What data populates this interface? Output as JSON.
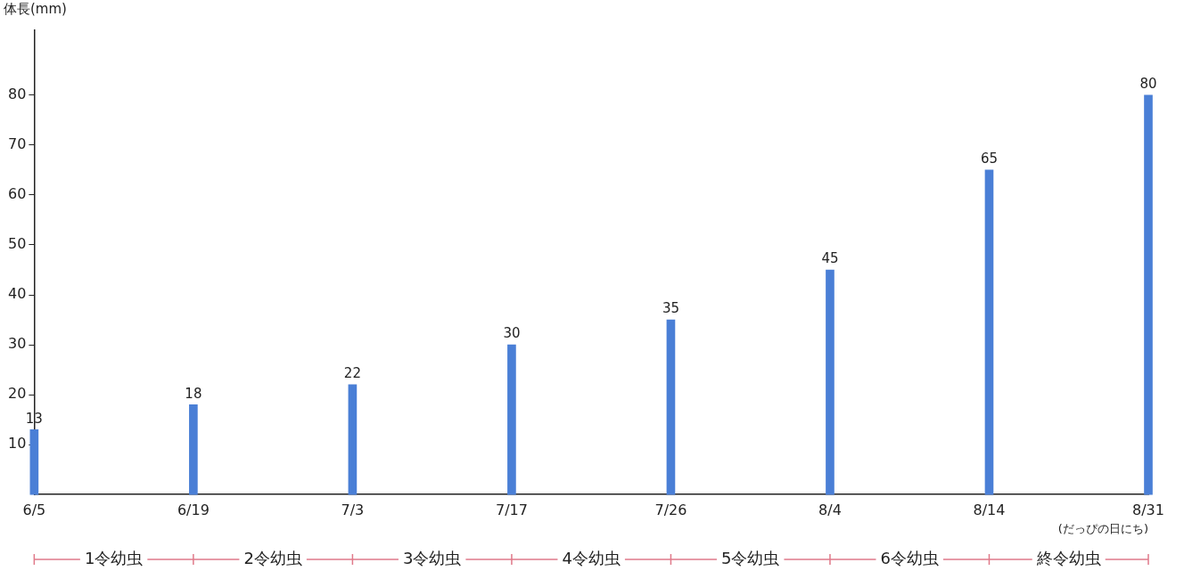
{
  "chart_data": {
    "type": "bar",
    "y_label": "体長(mm)",
    "x_label": "(だっぴの日にち)",
    "categories": [
      "6/5",
      "6/19",
      "7/3",
      "7/17",
      "7/26",
      "8/4",
      "8/14",
      "8/31"
    ],
    "values": [
      13,
      18,
      22,
      30,
      35,
      45,
      65,
      80
    ],
    "color": "#4a7fd6",
    "ylim": [
      0,
      93
    ],
    "yticks": [
      10,
      20,
      30,
      40,
      50,
      60,
      70,
      80
    ],
    "grid": false,
    "data_labels": true,
    "annotations": [
      "1令幼虫",
      "2令幼虫",
      "3令幼虫",
      "4令幼虫",
      "5令幼虫",
      "6令幼虫",
      "終令幼虫"
    ]
  }
}
